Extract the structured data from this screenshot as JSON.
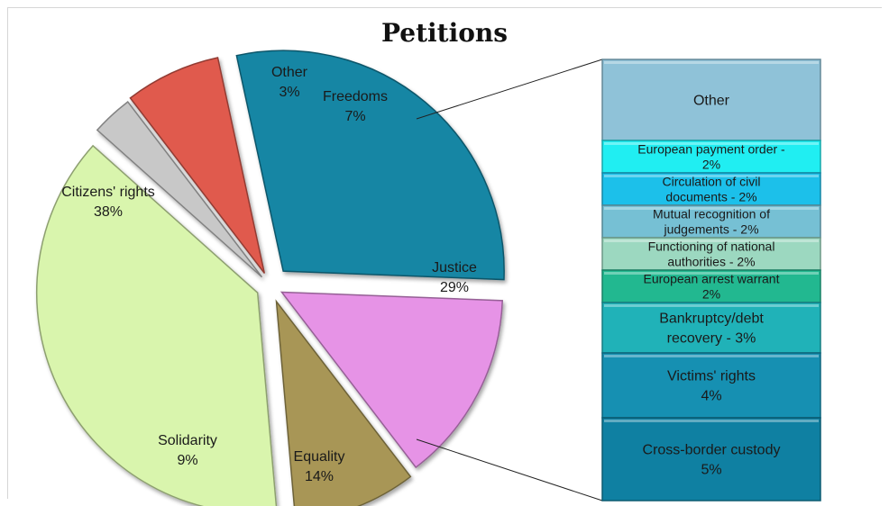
{
  "chart_data": {
    "type": "pie",
    "title": "Petitions",
    "slices": [
      {
        "name": "Citizens' rights",
        "value": 38,
        "label": "38%",
        "color": "#d9f5ad"
      },
      {
        "name": "Other",
        "value": 3,
        "label": "3%",
        "color": "#c8c8c8"
      },
      {
        "name": "Freedoms",
        "value": 7,
        "label": "7%",
        "color": "#e05a4e"
      },
      {
        "name": "Justice",
        "value": 29,
        "label": "29%",
        "color": "#1486a4"
      },
      {
        "name": "Equality",
        "value": 14,
        "label": "14%",
        "color": "#e693e6"
      },
      {
        "name": "Solidarity",
        "value": 9,
        "label": "9%",
        "color": "#a89656"
      }
    ],
    "breakdown": {
      "of": "Justice",
      "items": [
        {
          "text": "Other",
          "value": null,
          "color": "#8fc2d8"
        },
        {
          "text": "European payment order - 2%",
          "value": 2,
          "color": "#20eef2"
        },
        {
          "text": "Circulation of civil documents - 2%",
          "value": 2,
          "color": "#1cc0ea"
        },
        {
          "text": "Mutual recognition of judgements - 2%",
          "value": 2,
          "color": "#76c0d4"
        },
        {
          "text": "Functioning of national authorities - 2%",
          "value": 2,
          "color": "#9cd8c0"
        },
        {
          "text": "European arrest warrant 2%",
          "value": 2,
          "color": "#22b890"
        },
        {
          "text": "Bankruptcy/debt recovery - 3%",
          "value": 3,
          "color": "#20b2b8"
        },
        {
          "text": "Victims' rights 4%",
          "value": 4,
          "color": "#1690b2"
        },
        {
          "text": "Cross-border custody 5%",
          "value": 5,
          "color": "#0f80a2"
        }
      ]
    }
  }
}
